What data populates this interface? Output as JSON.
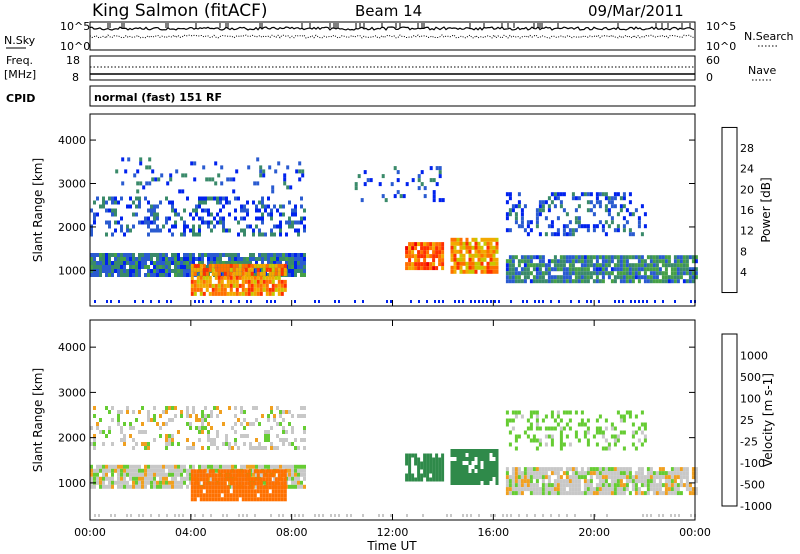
{
  "header": {
    "site": "King Salmon (fitACF)",
    "beam": "Beam 14",
    "date": "09/Mar/2011"
  },
  "aux_panel": {
    "left_labels": [
      "N.Sky",
      "Freq.",
      "[MHz]",
      "CPID"
    ],
    "right_labels": [
      "N.Search",
      "Nave"
    ],
    "nsky_ticks": [
      "10^5",
      "10^0"
    ],
    "nsearch_ticks": [
      "10^5",
      "10^0"
    ],
    "freq_ticks": [
      "18",
      "8"
    ],
    "nave_ticks": [
      "60",
      "0"
    ],
    "cpid_text": "normal (fast) 151 RF"
  },
  "colors": {
    "power_scale": [
      "#0022ee",
      "#2a5bd0",
      "#3a8a6a",
      "#46a046",
      "#c8c800",
      "#f2a900",
      "#ff7000",
      "#ff3000",
      "#ee0000"
    ],
    "velocity_scale": [
      "#1a3bcc",
      "#2f8a4a",
      "#66cc33",
      "#c8c8c8",
      "#f0a020",
      "#ff7000",
      "#ff3000",
      "#ee0000"
    ]
  },
  "chart_data": [
    {
      "type": "heatmap",
      "panel": "power",
      "ylabel": "Slant Range [km]",
      "ylim": [
        180,
        4600
      ],
      "yticks": [
        1000,
        2000,
        3000,
        4000
      ],
      "xlim": [
        0,
        24
      ],
      "colorbar": {
        "label": "Power [dB]",
        "ticks": [
          4,
          8,
          12,
          16,
          20,
          24,
          28
        ],
        "range": [
          0,
          32
        ]
      },
      "blobs": [
        {
          "x0": 0.0,
          "x1": 8.5,
          "y0": 900,
          "y1": 1400,
          "value": 7,
          "density": 0.9
        },
        {
          "x0": 4.0,
          "x1": 7.8,
          "y0": 500,
          "y1": 1150,
          "value": 22,
          "density": 0.9
        },
        {
          "x0": 12.5,
          "x1": 14.0,
          "y0": 1050,
          "y1": 1650,
          "value": 24,
          "density": 0.85
        },
        {
          "x0": 14.3,
          "x1": 16.2,
          "y0": 1000,
          "y1": 1750,
          "value": 21,
          "density": 0.85
        },
        {
          "x0": 16.5,
          "x1": 24.0,
          "y0": 750,
          "y1": 1350,
          "value": 8,
          "density": 0.85
        },
        {
          "x0": 0.0,
          "x1": 8.5,
          "y0": 1800,
          "y1": 2700,
          "value": 5,
          "density": 0.35
        },
        {
          "x0": 10.5,
          "x1": 14.0,
          "y0": 2600,
          "y1": 3400,
          "value": 4,
          "density": 0.15
        },
        {
          "x0": 16.5,
          "x1": 22.0,
          "y0": 1800,
          "y1": 2800,
          "value": 5,
          "density": 0.3
        },
        {
          "x0": 1.0,
          "x1": 8.5,
          "y0": 2800,
          "y1": 3600,
          "value": 5,
          "density": 0.1
        }
      ]
    },
    {
      "type": "heatmap",
      "panel": "velocity",
      "xlabel": "Time UT",
      "ylabel": "Slant Range [km]",
      "ylim": [
        180,
        4600
      ],
      "yticks": [
        1000,
        2000,
        3000,
        4000
      ],
      "xlim": [
        0,
        24
      ],
      "xticks": [
        "00:00",
        "04:00",
        "08:00",
        "12:00",
        "16:00",
        "20:00",
        "00:00"
      ],
      "colorbar": {
        "label": "Velocity [m s-1]",
        "ticks": [
          1000,
          500,
          100,
          25,
          -25,
          -100,
          -500,
          -1000
        ]
      },
      "blobs": [
        {
          "x0": 0.0,
          "x1": 8.5,
          "y0": 900,
          "y1": 1400,
          "value": 0,
          "density": 0.9
        },
        {
          "x0": 4.0,
          "x1": 7.8,
          "y0": 650,
          "y1": 1300,
          "value": -150,
          "density": 0.9
        },
        {
          "x0": 12.5,
          "x1": 14.0,
          "y0": 1050,
          "y1": 1650,
          "value": 300,
          "density": 0.8
        },
        {
          "x0": 14.3,
          "x1": 16.2,
          "y0": 1000,
          "y1": 1750,
          "value": 200,
          "density": 0.85
        },
        {
          "x0": 16.5,
          "x1": 24.0,
          "y0": 750,
          "y1": 1350,
          "value": 0,
          "density": 0.85
        },
        {
          "x0": 0.0,
          "x1": 8.5,
          "y0": 1800,
          "y1": 2700,
          "value": 0,
          "density": 0.3
        },
        {
          "x0": 16.5,
          "x1": 22.0,
          "y0": 1800,
          "y1": 2600,
          "value": 50,
          "density": 0.3
        }
      ]
    }
  ]
}
